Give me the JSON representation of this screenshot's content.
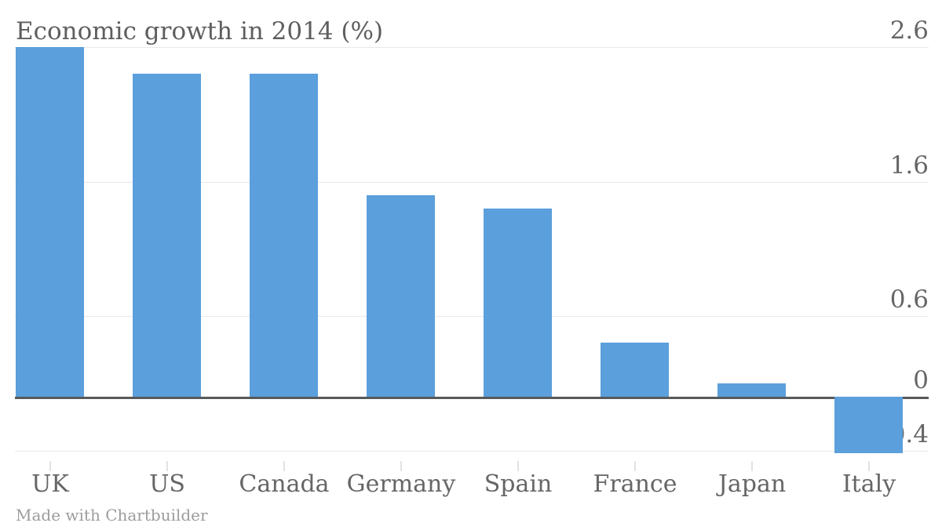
{
  "title": "Economic growth in 2014 (%)",
  "credit": "Made with Chartbuilder",
  "colors": {
    "bar": "#5B9FDC",
    "title_text": "#5E5E5E",
    "axis_text": "#666666",
    "gridline": "#E8E8E8",
    "zero_line": "#58595B",
    "tick_mark": "#E2E2E2",
    "credit_text": "#9C9C9C",
    "background": "#FFFFFF"
  },
  "chart_data": {
    "type": "bar",
    "title": "Economic growth in 2014 (%)",
    "xlabel": "",
    "ylabel": "",
    "categories": [
      "UK",
      "US",
      "Canada",
      "Germany",
      "Spain",
      "France",
      "Japan",
      "Italy"
    ],
    "values": [
      2.6,
      2.4,
      2.4,
      1.5,
      1.4,
      0.4,
      0.1,
      -0.4
    ],
    "y_ticks": [
      2.6,
      1.6,
      0.6,
      0,
      -0.4
    ],
    "y_tick_labels": [
      "2.6",
      "1.6",
      "0.6",
      "0",
      "-0.4"
    ],
    "ylim": [
      -0.4,
      2.6
    ],
    "grid": true,
    "legend": "none",
    "y_axis_side": "right",
    "bar_color": "#5B9FDC"
  }
}
